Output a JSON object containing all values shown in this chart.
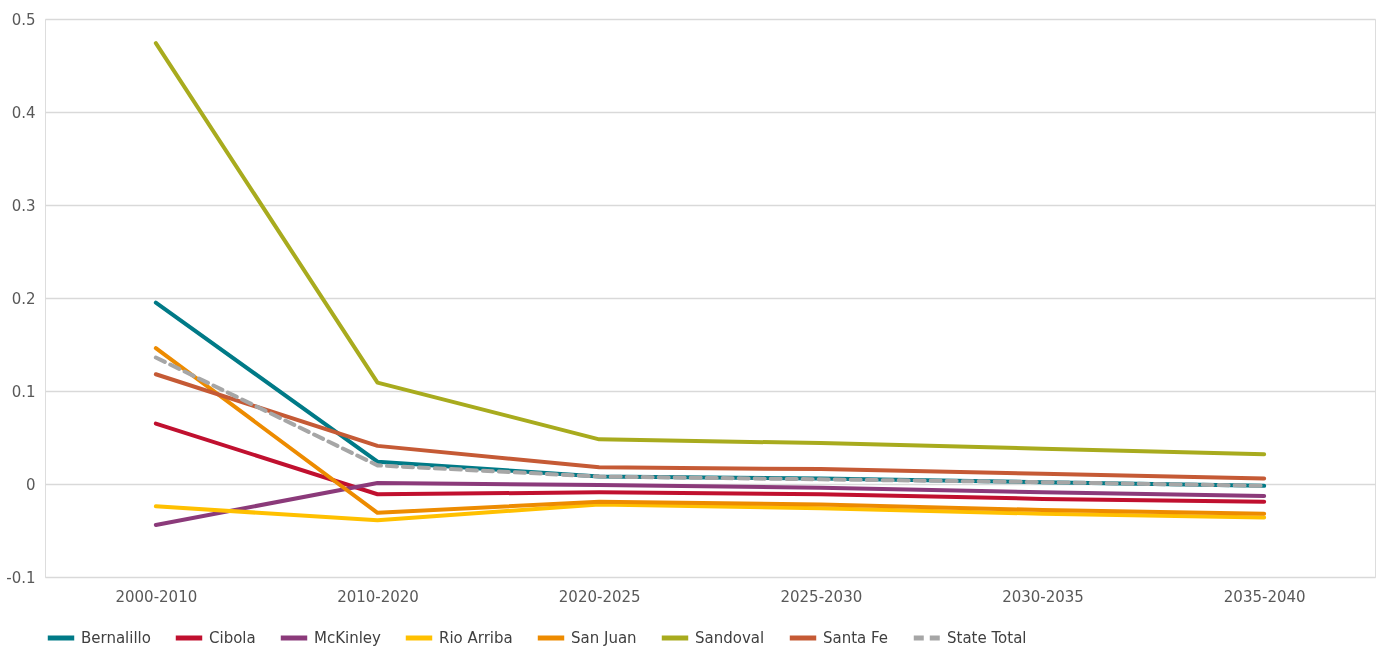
{
  "chart_data": {
    "type": "line",
    "categories": [
      "2000-2010",
      "2010-2020",
      "2020-2025",
      "2025-2030",
      "2030-2035",
      "2035-2040"
    ],
    "ylim": [
      -0.1,
      0.5
    ],
    "yticks": [
      -0.1,
      0,
      0.1,
      0.2,
      0.3,
      0.4,
      0.5
    ],
    "grid": "y",
    "legend": "bottom",
    "marker": "none",
    "series": [
      {
        "name": "Bernalillo",
        "color": "#007a87",
        "values": [
          0.195,
          0.024,
          0.008,
          0.006,
          0.002,
          -0.002
        ]
      },
      {
        "name": "Cibola",
        "color": "#c0102f",
        "values": [
          0.065,
          -0.011,
          -0.009,
          -0.011,
          -0.016,
          -0.019
        ]
      },
      {
        "name": "McKinley",
        "color": "#8b3a7a",
        "values": [
          -0.044,
          0.001,
          -0.001,
          -0.004,
          -0.009,
          -0.013
        ]
      },
      {
        "name": "Rio Arriba",
        "color": "#ffc000",
        "values": [
          -0.024,
          -0.039,
          -0.022,
          -0.026,
          -0.032,
          -0.036
        ]
      },
      {
        "name": "San Juan",
        "color": "#ed8b00",
        "values": [
          0.146,
          -0.031,
          -0.019,
          -0.022,
          -0.028,
          -0.032
        ]
      },
      {
        "name": "Sandoval",
        "color": "#a8ab1e",
        "values": [
          0.474,
          0.109,
          0.048,
          0.044,
          0.038,
          0.032
        ]
      },
      {
        "name": "Santa Fe",
        "color": "#c55a35",
        "values": [
          0.118,
          0.041,
          0.018,
          0.016,
          0.011,
          0.006
        ]
      },
      {
        "name": "State Total",
        "color": "#a6a6a6",
        "line_style": "dashed",
        "values": [
          0.136,
          0.02,
          0.008,
          0.005,
          0.002,
          -0.002
        ]
      }
    ]
  }
}
